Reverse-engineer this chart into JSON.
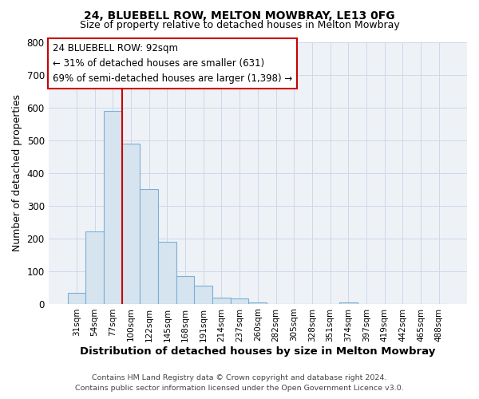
{
  "title_line1": "24, BLUEBELL ROW, MELTON MOWBRAY, LE13 0FG",
  "title_line2": "Size of property relative to detached houses in Melton Mowbray",
  "xlabel": "Distribution of detached houses by size in Melton Mowbray",
  "ylabel": "Number of detached properties",
  "bar_labels": [
    "31sqm",
    "54sqm",
    "77sqm",
    "100sqm",
    "122sqm",
    "145sqm",
    "168sqm",
    "191sqm",
    "214sqm",
    "237sqm",
    "260sqm",
    "282sqm",
    "305sqm",
    "328sqm",
    "351sqm",
    "374sqm",
    "397sqm",
    "419sqm",
    "442sqm",
    "465sqm",
    "488sqm"
  ],
  "bar_values": [
    32,
    220,
    590,
    490,
    350,
    188,
    85,
    55,
    18,
    15,
    5,
    0,
    0,
    0,
    0,
    5,
    0,
    0,
    0,
    0,
    0
  ],
  "bar_color": "#d6e4f0",
  "bar_edge_color": "#7bafd4",
  "ylim": [
    0,
    800
  ],
  "yticks": [
    0,
    100,
    200,
    300,
    400,
    500,
    600,
    700,
    800
  ],
  "vline_color": "#cc0000",
  "vline_position": 2.5,
  "annotation_title": "24 BLUEBELL ROW: 92sqm",
  "annotation_line1": "← 31% of detached houses are smaller (631)",
  "annotation_line2": "69% of semi-detached houses are larger (1,398) →",
  "annotation_box_facecolor": "#ffffff",
  "annotation_box_edgecolor": "#cc0000",
  "footer_line1": "Contains HM Land Registry data © Crown copyright and database right 2024.",
  "footer_line2": "Contains public sector information licensed under the Open Government Licence v3.0.",
  "bg_color": "#ffffff",
  "plot_bg_color": "#eef2f7",
  "grid_color": "#cdd8e8",
  "figsize": [
    6.0,
    5.0
  ],
  "dpi": 100
}
